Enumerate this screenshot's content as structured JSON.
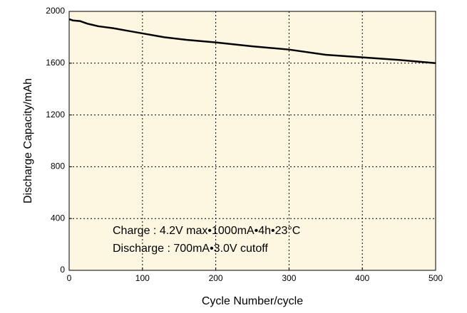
{
  "chart_data": {
    "type": "line",
    "x_label": "Cycle Number/cycle",
    "y_label": "Discharge Capacity/mAh",
    "annotations": [
      "Charge : 4.2V max•1000mA•4h•23°C",
      "Discharge : 700mA•3.0V cutoff"
    ],
    "x": [
      0,
      5,
      15,
      25,
      40,
      60,
      80,
      100,
      130,
      160,
      200,
      250,
      300,
      350,
      400,
      450,
      500
    ],
    "series": [
      {
        "name": "Discharge Capacity",
        "color": "#000000",
        "values": [
          1940,
          1930,
          1925,
          1905,
          1885,
          1870,
          1850,
          1830,
          1800,
          1780,
          1760,
          1730,
          1705,
          1665,
          1645,
          1625,
          1600
        ]
      }
    ],
    "xlim": [
      0,
      500
    ],
    "xticks": [
      0,
      100,
      200,
      300,
      400,
      500
    ],
    "ylim": [
      0,
      2000
    ],
    "yticks": [
      0,
      400,
      800,
      1200,
      1600,
      2000
    ],
    "grid": true,
    "background": "#fdf6e1"
  }
}
